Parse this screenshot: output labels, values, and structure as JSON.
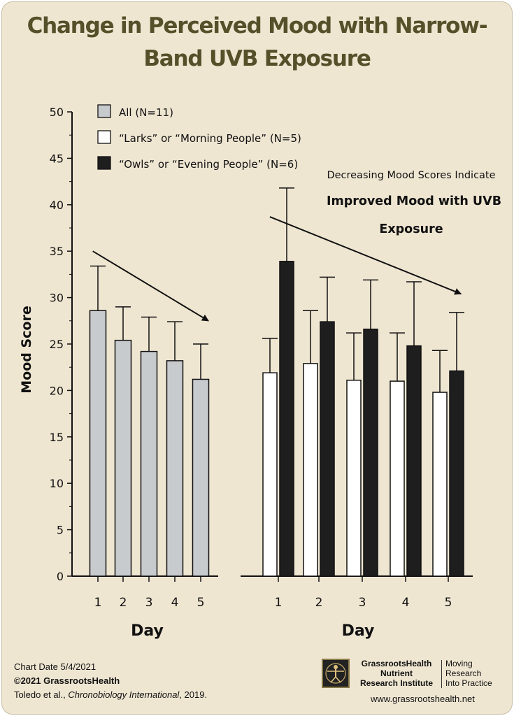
{
  "title": "Change in Perceived Mood with Narrow-Band UVB Exposure",
  "chart_data": {
    "type": "bar",
    "ylabel": "Mood Score",
    "ylim": [
      0,
      50
    ],
    "yticks": [
      0,
      5,
      10,
      15,
      20,
      25,
      30,
      35,
      40,
      45,
      50
    ],
    "grid": false,
    "legend_position": "top-left",
    "panels": [
      {
        "xlabel": "Day",
        "categories": [
          "1",
          "2",
          "3",
          "4",
          "5"
        ],
        "series": [
          {
            "name": "All (N=11)",
            "color": "#c8cbce",
            "values": [
              28.6,
              25.4,
              24.2,
              23.2,
              21.2
            ],
            "error": [
              4.8,
              3.6,
              3.7,
              4.2,
              3.8
            ]
          }
        ],
        "annotation": {
          "type": "arrow",
          "from": [
            0.8,
            35.0
          ],
          "to": [
            5.3,
            27.5
          ]
        }
      },
      {
        "xlabel": "Day",
        "categories": [
          "1",
          "2",
          "3",
          "4",
          "5"
        ],
        "series": [
          {
            "name": "“Larks” or “Morning People” (N=5)",
            "color": "#ffffff",
            "values": [
              21.9,
              22.9,
              21.1,
              21.0,
              19.8
            ],
            "error": [
              3.7,
              5.7,
              5.1,
              5.2,
              4.5
            ]
          },
          {
            "name": "“Owls” or “Evening People” (N=6)",
            "color": "#1e1e1e",
            "values": [
              33.9,
              27.4,
              26.6,
              24.8,
              22.1
            ],
            "error": [
              7.9,
              4.8,
              5.3,
              6.9,
              6.3
            ]
          }
        ],
        "annotation": {
          "type": "arrow",
          "from": [
            0.8,
            38.7
          ],
          "to": [
            5.3,
            30.4
          ]
        }
      }
    ],
    "annotation_text": [
      "Decreasing Mood Scores Indicate",
      "Improved Mood with UVB",
      "Exposure"
    ]
  },
  "footer": {
    "chart_date": "Chart Date 5/4/2021",
    "copyright": "©2021 GrassrootsHealth",
    "citation_authors": "Toledo et al., ",
    "citation_journal": "Chronobiology International",
    "citation_year": ", 2019.",
    "logo_name": [
      "GrassrootsHealth",
      "Nutrient",
      "Research Institute"
    ],
    "logo_tagline": [
      "Moving",
      "Research",
      "Into Practice"
    ],
    "website": "www.grassrootshealth.net"
  },
  "logo_icon": "vitruvian-man-icon"
}
